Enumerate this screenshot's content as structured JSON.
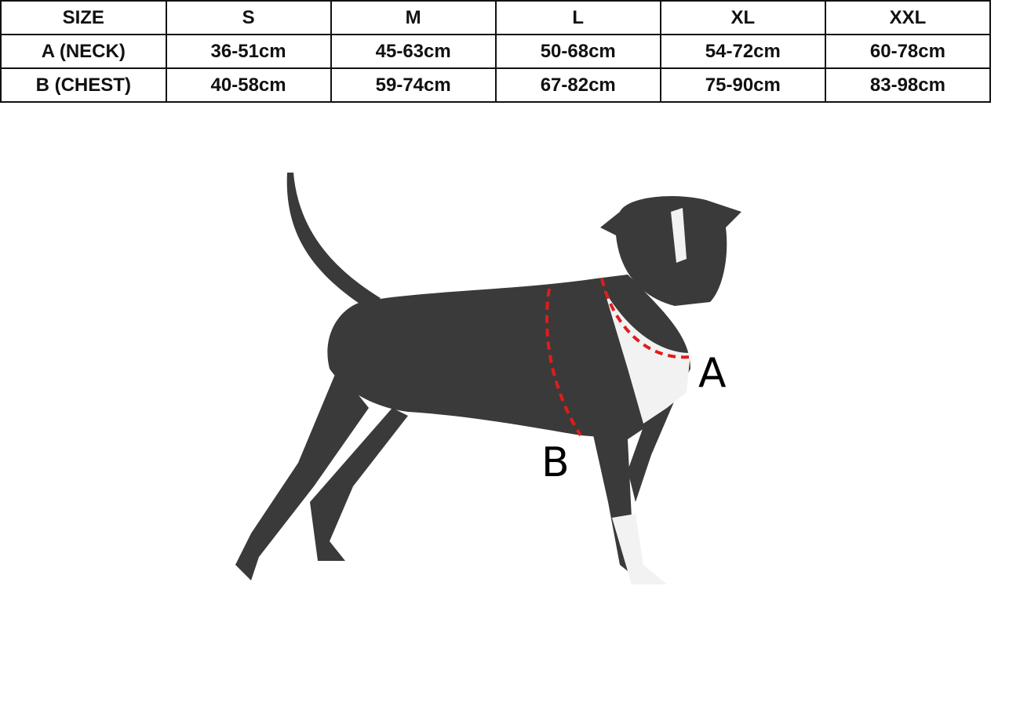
{
  "size_table": {
    "header": [
      "SIZE",
      "S",
      "M",
      "L",
      "XL",
      "XXL"
    ],
    "rows": [
      [
        "A (NECK)",
        "36-51cm",
        "45-63cm",
        "50-68cm",
        "54-72cm",
        "60-78cm"
      ],
      [
        "B (CHEST)",
        "40-58cm",
        "59-74cm",
        "67-82cm",
        "75-90cm",
        "83-98cm"
      ]
    ]
  },
  "illustration": {
    "subject": "dog",
    "neck_label": "A",
    "chest_label": "B",
    "measure_line_color": "#e31b1b"
  }
}
